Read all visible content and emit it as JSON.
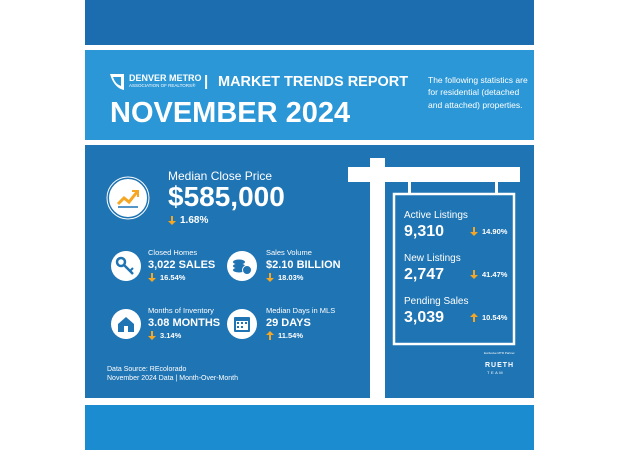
{
  "header": {
    "org_name": "DENVER METRO",
    "org_sub": "ASSOCIATION OF REALTORS®",
    "report": "MARKET TRENDS REPORT",
    "title": "NOVEMBER 2024",
    "note": "The following statistics are for residential (detached and attached) properties."
  },
  "headline": {
    "label": "Median Close Price",
    "value": "$585,000",
    "change": "1.68%",
    "direction": "down"
  },
  "stats": [
    {
      "label": "Closed Homes",
      "value": "3,022 SALES",
      "change": "16.54%",
      "direction": "down"
    },
    {
      "label": "Sales Volume",
      "value": "$2.10 BILLION",
      "change": "18.03%",
      "direction": "down"
    },
    {
      "label": "Months of Inventory",
      "value": "3.08 MONTHS",
      "change": "3.14%",
      "direction": "down"
    },
    {
      "label": "Median Days in MLS",
      "value": "29 DAYS",
      "change": "11.54%",
      "direction": "up"
    }
  ],
  "sign": [
    {
      "label": "Active Listings",
      "value": "9,310",
      "change": "14.90%",
      "direction": "down"
    },
    {
      "label": "New Listings",
      "value": "2,747",
      "change": "41.47%",
      "direction": "down"
    },
    {
      "label": "Pending Sales",
      "value": "3,039",
      "change": "10.54%",
      "direction": "up"
    }
  ],
  "footer": {
    "source": "Data Source: REcolorado",
    "period": "November 2024 Data | Month-Over-Month"
  },
  "partner": {
    "caption": "Exclusive MTR Partner",
    "name": "RUETH",
    "team": "TEAM"
  }
}
